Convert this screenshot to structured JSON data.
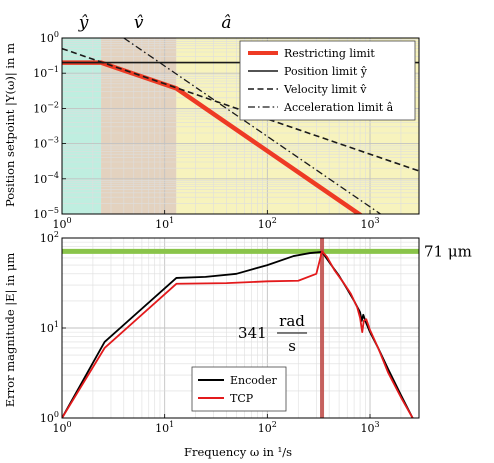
{
  "chart_data": [
    {
      "type": "line",
      "ylabel": "Position setpoint |Y(ω)| in m",
      "xscale": "log",
      "yscale": "log",
      "xlim": [
        1,
        3000
      ],
      "ylim": [
        1e-05,
        1
      ],
      "grid": true,
      "legend_position": "top-right",
      "x_ticks": [
        {
          "v": 1,
          "b": "10",
          "e": "0"
        },
        {
          "v": 10,
          "b": "10",
          "e": "1"
        },
        {
          "v": 100,
          "b": "10",
          "e": "2"
        },
        {
          "v": 1000,
          "b": "10",
          "e": "3"
        }
      ],
      "y_ticks": [
        {
          "v": 1,
          "b": "10",
          "e": "0"
        },
        {
          "v": 0.1,
          "b": "10",
          "e": "−1"
        },
        {
          "v": 0.01,
          "b": "10",
          "e": "−2"
        },
        {
          "v": 0.001,
          "b": "10",
          "e": "−3"
        },
        {
          "v": 0.0001,
          "b": "10",
          "e": "−4"
        },
        {
          "v": 1e-05,
          "b": "10",
          "e": "−5"
        }
      ],
      "regions": [
        {
          "label": "ŷ",
          "x_from": 1,
          "x_to": 2.4,
          "color": "#bfeee0"
        },
        {
          "label": "v̂",
          "x_from": 2.4,
          "x_to": 13,
          "color": "#e3d2bf"
        },
        {
          "label": "â",
          "x_from": 13,
          "x_to": 3000,
          "color": "#f7f3bd"
        }
      ],
      "series": [
        {
          "name": "Restricting limit",
          "style": "solid",
          "color": "#ee3a24",
          "width": 4.5,
          "points": [
            [
              1,
              0.2
            ],
            [
              2.4,
              0.2
            ],
            [
              13,
              0.037
            ],
            [
              350,
              5e-05
            ],
            [
              1000,
              6.1e-06
            ]
          ]
        },
        {
          "name": "Position limit ŷ",
          "style": "solid",
          "color": "#1a1a1a",
          "width": 1.6,
          "points": [
            [
              1,
              0.2
            ],
            [
              3000,
              0.2
            ]
          ]
        },
        {
          "name": "Velocity limit v̂",
          "style": "dashed",
          "color": "#1a1a1a",
          "width": 1.6,
          "points": [
            [
              1,
              0.5
            ],
            [
              3000,
              0.000167
            ]
          ]
        },
        {
          "name": "Acceleration limit â",
          "style": "dashdot",
          "color": "#1a1a1a",
          "width": 1.3,
          "points": [
            [
              4,
              1
            ],
            [
              3000,
              1.78e-06
            ]
          ]
        }
      ]
    },
    {
      "type": "line",
      "xlabel": "Frequency ω in ¹/s",
      "ylabel": "Error magnitude |E| in μm",
      "xscale": "log",
      "yscale": "log",
      "xlim": [
        1,
        3000
      ],
      "ylim": [
        1,
        100
      ],
      "grid": true,
      "legend_position": "bottom-center",
      "x_ticks": [
        {
          "v": 1,
          "b": "10",
          "e": "0"
        },
        {
          "v": 10,
          "b": "10",
          "e": "1"
        },
        {
          "v": 100,
          "b": "10",
          "e": "2"
        },
        {
          "v": 1000,
          "b": "10",
          "e": "3"
        }
      ],
      "y_ticks": [
        {
          "v": 1,
          "b": "10",
          "e": "0"
        },
        {
          "v": 10,
          "b": "10",
          "e": "1"
        },
        {
          "v": 100,
          "b": "10",
          "e": "2"
        }
      ],
      "annotations": {
        "hline": {
          "value": 71,
          "label": "71 μm",
          "color": "#8ac44a"
        },
        "vline": {
          "value": 341,
          "label_num": "341",
          "label_frac_top": "rad",
          "label_frac_bottom": "s",
          "color": "#c0504d"
        }
      },
      "series": [
        {
          "name": "Encoder",
          "color": "#000000",
          "width": 1.8,
          "points": [
            [
              1,
              1
            ],
            [
              2.6,
              7
            ],
            [
              13,
              36
            ],
            [
              25,
              37
            ],
            [
              50,
              40
            ],
            [
              100,
              50
            ],
            [
              180,
              63
            ],
            [
              260,
              68
            ],
            [
              341,
              70
            ],
            [
              420,
              50
            ],
            [
              500,
              38
            ],
            [
              600,
              27
            ],
            [
              700,
              20
            ],
            [
              800,
              15
            ],
            [
              830,
              12
            ],
            [
              860,
              14
            ],
            [
              900,
              12
            ],
            [
              1000,
              9
            ],
            [
              1200,
              6
            ],
            [
              1500,
              3.5
            ],
            [
              2000,
              1.8
            ],
            [
              2600,
              1
            ]
          ]
        },
        {
          "name": "TCP",
          "color": "#e31a1c",
          "width": 1.8,
          "points": [
            [
              1,
              1
            ],
            [
              2.6,
              6
            ],
            [
              13,
              31
            ],
            [
              40,
              31.5
            ],
            [
              100,
              33
            ],
            [
              200,
              33.5
            ],
            [
              300,
              40
            ],
            [
              341,
              71
            ],
            [
              380,
              62
            ],
            [
              450,
              44
            ],
            [
              550,
              32
            ],
            [
              650,
              24
            ],
            [
              750,
              17
            ],
            [
              800,
              13
            ],
            [
              840,
              9
            ],
            [
              870,
              12
            ],
            [
              920,
              12.5
            ],
            [
              1000,
              9.5
            ],
            [
              1200,
              6
            ],
            [
              1500,
              3.2
            ],
            [
              2000,
              1.7
            ],
            [
              2600,
              1
            ]
          ]
        }
      ]
    }
  ]
}
